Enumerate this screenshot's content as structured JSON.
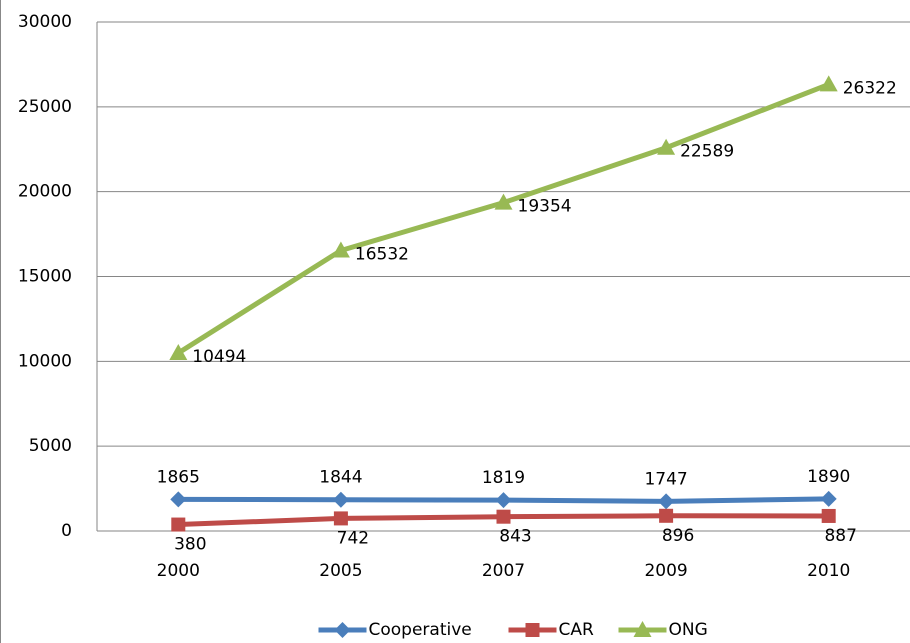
{
  "chart_data": {
    "type": "line",
    "categories": [
      "2000",
      "2005",
      "2007",
      "2009",
      "2010"
    ],
    "series": [
      {
        "name": "Cooperative",
        "color": "#4a7ebb",
        "marker": "diamond",
        "values": [
          1865,
          1844,
          1819,
          1747,
          1890
        ]
      },
      {
        "name": "CAR",
        "color": "#be4b48",
        "marker": "square",
        "values": [
          380,
          742,
          843,
          896,
          887
        ]
      },
      {
        "name": "ONG",
        "color": "#98b954",
        "marker": "triangle",
        "values": [
          10494,
          16532,
          19354,
          22589,
          26322
        ]
      }
    ],
    "ylim": [
      0,
      30000
    ],
    "yticks": [
      0,
      5000,
      10000,
      15000,
      20000,
      25000,
      30000
    ],
    "grid": true,
    "legend": "bottom"
  }
}
